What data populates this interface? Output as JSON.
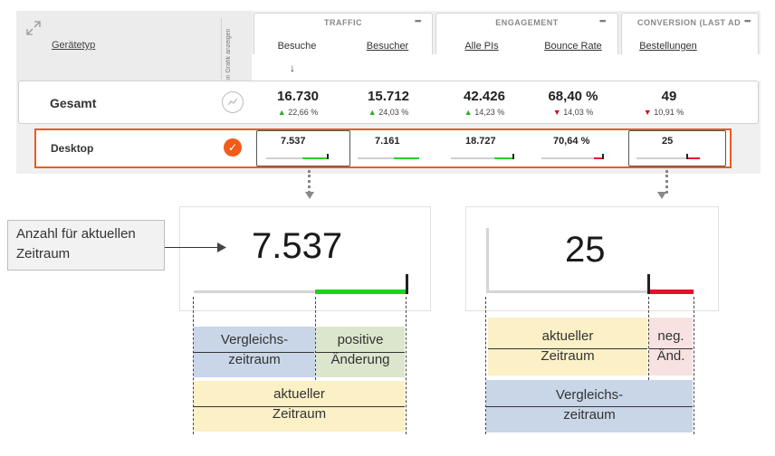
{
  "table": {
    "first_col_header": "Gerätetyp",
    "chart_toggle_header": "in Grafik anzeigen",
    "groups": {
      "traffic": "TRAFFIC",
      "engagement": "ENGAGEMENT",
      "conversion": "CONVERSION (LAST AD"
    },
    "more_glyph": "•••",
    "columns": [
      "Besuche",
      "Besucher",
      "Alle PIs",
      "Bounce Rate",
      "Bestellungen"
    ],
    "sort_indicator": "↓",
    "total_row": {
      "label": "Gesamt",
      "values": [
        "16.730",
        "15.712",
        "42.426",
        "68,40 %",
        "49"
      ],
      "changes": [
        "22,66 %",
        "24,03 %",
        "14,23 %",
        "14,03 %",
        "10,91 %"
      ],
      "change_dirs": [
        "up",
        "up",
        "up",
        "down",
        "down"
      ],
      "up_arrow": "▲",
      "down_arrow": "▼"
    },
    "desktop_row": {
      "label": "Desktop",
      "check": "✓",
      "values": [
        "7.537",
        "7.161",
        "18.727",
        "70,64 %",
        "25"
      ]
    }
  },
  "zoom_left": {
    "value": "7.537",
    "callout": [
      "Anzahl für aktuellen",
      "Zeitraum"
    ],
    "legend": {
      "comparison": [
        "Vergleichs-",
        "zeitraum"
      ],
      "positive": [
        "positive",
        "Änderung"
      ],
      "current": [
        "aktueller",
        "Zeitraum"
      ]
    }
  },
  "zoom_right": {
    "value": "25",
    "legend": {
      "current": [
        "aktueller",
        "Zeitraum"
      ],
      "negative": [
        "neg.",
        "Änd."
      ],
      "comparison": [
        "Vergleichs-",
        "zeitraum"
      ]
    }
  },
  "colors": {
    "highlight": "#ea5b1f",
    "positive": "#1fd11f",
    "negative": "#e6102a",
    "comparison_block": "#c9d6e8",
    "positive_block": "#dbe6cc",
    "current_block": "#fbf0c6",
    "negative_block": "#f7e2e1"
  },
  "icons": [
    "expand-icon",
    "more-icon",
    "sort-down-arrow-icon",
    "trend-icon",
    "checkmark-icon"
  ]
}
